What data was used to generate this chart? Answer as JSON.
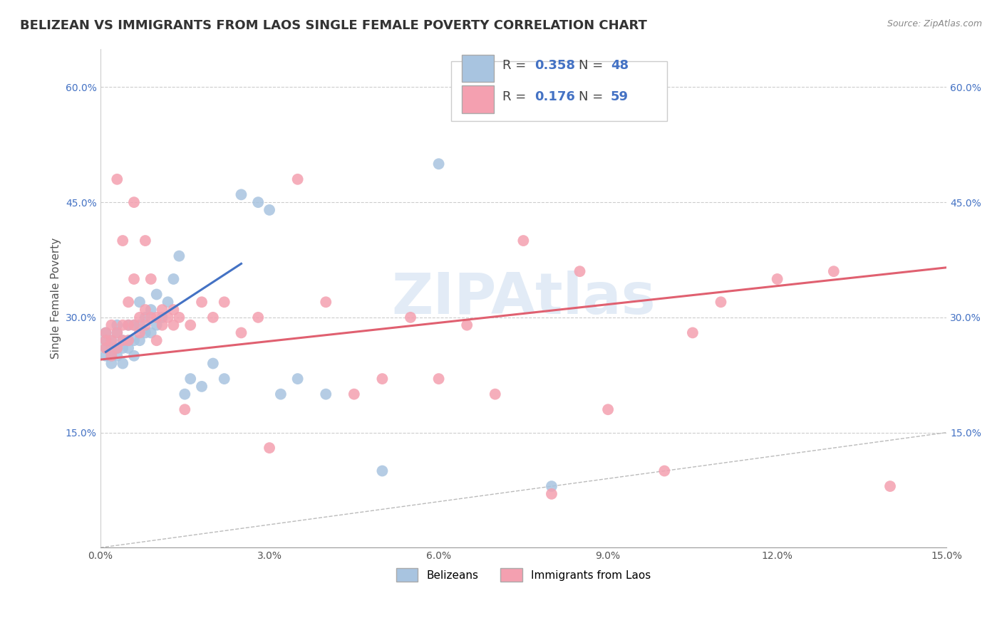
{
  "title": "BELIZEAN VS IMMIGRANTS FROM LAOS SINGLE FEMALE POVERTY CORRELATION CHART",
  "source": "Source: ZipAtlas.com",
  "ylabel_label": "Single Female Poverty",
  "xlim": [
    0.0,
    0.15
  ],
  "ylim": [
    0.0,
    0.65
  ],
  "xticks": [
    0.0,
    0.03,
    0.06,
    0.09,
    0.12,
    0.15
  ],
  "yticks": [
    0.0,
    0.15,
    0.3,
    0.45,
    0.6
  ],
  "xtick_labels": [
    "0.0%",
    "3.0%",
    "6.0%",
    "9.0%",
    "12.0%",
    "15.0%"
  ],
  "ytick_labels": [
    "",
    "15.0%",
    "30.0%",
    "45.0%",
    "60.0%"
  ],
  "series": [
    {
      "name": "Belizeans",
      "color": "#a8c4e0",
      "R": 0.358,
      "N": 48,
      "line_color": "#4472c4",
      "x": [
        0.001,
        0.001,
        0.001,
        0.001,
        0.002,
        0.002,
        0.002,
        0.002,
        0.003,
        0.003,
        0.003,
        0.003,
        0.004,
        0.004,
        0.004,
        0.005,
        0.005,
        0.005,
        0.006,
        0.006,
        0.006,
        0.007,
        0.007,
        0.007,
        0.008,
        0.008,
        0.009,
        0.009,
        0.01,
        0.01,
        0.011,
        0.012,
        0.013,
        0.014,
        0.015,
        0.016,
        0.018,
        0.02,
        0.022,
        0.025,
        0.028,
        0.03,
        0.032,
        0.035,
        0.04,
        0.05,
        0.06,
        0.08
      ],
      "y": [
        0.25,
        0.26,
        0.27,
        0.28,
        0.24,
        0.25,
        0.26,
        0.27,
        0.25,
        0.26,
        0.28,
        0.29,
        0.24,
        0.26,
        0.27,
        0.26,
        0.27,
        0.29,
        0.25,
        0.27,
        0.29,
        0.27,
        0.29,
        0.32,
        0.28,
        0.3,
        0.28,
        0.31,
        0.29,
        0.33,
        0.3,
        0.32,
        0.35,
        0.38,
        0.2,
        0.22,
        0.21,
        0.24,
        0.22,
        0.46,
        0.45,
        0.44,
        0.2,
        0.22,
        0.2,
        0.1,
        0.5,
        0.08
      ],
      "line_x": [
        0.001,
        0.025
      ],
      "line_y": [
        0.255,
        0.37
      ]
    },
    {
      "name": "Immigrants from Laos",
      "color": "#f4a0b0",
      "R": 0.176,
      "N": 59,
      "line_color": "#e06070",
      "x": [
        0.001,
        0.001,
        0.001,
        0.002,
        0.002,
        0.002,
        0.003,
        0.003,
        0.003,
        0.004,
        0.004,
        0.004,
        0.005,
        0.005,
        0.005,
        0.006,
        0.006,
        0.006,
        0.007,
        0.007,
        0.008,
        0.008,
        0.008,
        0.009,
        0.009,
        0.01,
        0.01,
        0.011,
        0.011,
        0.012,
        0.013,
        0.013,
        0.014,
        0.015,
        0.016,
        0.018,
        0.02,
        0.022,
        0.025,
        0.028,
        0.03,
        0.035,
        0.04,
        0.045,
        0.05,
        0.055,
        0.06,
        0.065,
        0.07,
        0.075,
        0.08,
        0.085,
        0.09,
        0.1,
        0.105,
        0.11,
        0.12,
        0.13,
        0.14
      ],
      "y": [
        0.26,
        0.27,
        0.28,
        0.25,
        0.27,
        0.29,
        0.26,
        0.28,
        0.48,
        0.27,
        0.29,
        0.4,
        0.27,
        0.29,
        0.32,
        0.29,
        0.35,
        0.45,
        0.28,
        0.3,
        0.29,
        0.31,
        0.4,
        0.3,
        0.35,
        0.27,
        0.3,
        0.29,
        0.31,
        0.3,
        0.29,
        0.31,
        0.3,
        0.18,
        0.29,
        0.32,
        0.3,
        0.32,
        0.28,
        0.3,
        0.13,
        0.48,
        0.32,
        0.2,
        0.22,
        0.3,
        0.22,
        0.29,
        0.2,
        0.4,
        0.07,
        0.36,
        0.18,
        0.1,
        0.28,
        0.32,
        0.35,
        0.36,
        0.08
      ],
      "line_x": [
        0.0,
        0.15
      ],
      "line_y": [
        0.245,
        0.365
      ]
    }
  ],
  "watermark": "ZIPAtlas",
  "grid_color": "#cccccc",
  "background_color": "#ffffff",
  "title_fontsize": 13,
  "axis_label_fontsize": 11,
  "tick_fontsize": 10,
  "legend_fontsize": 13
}
